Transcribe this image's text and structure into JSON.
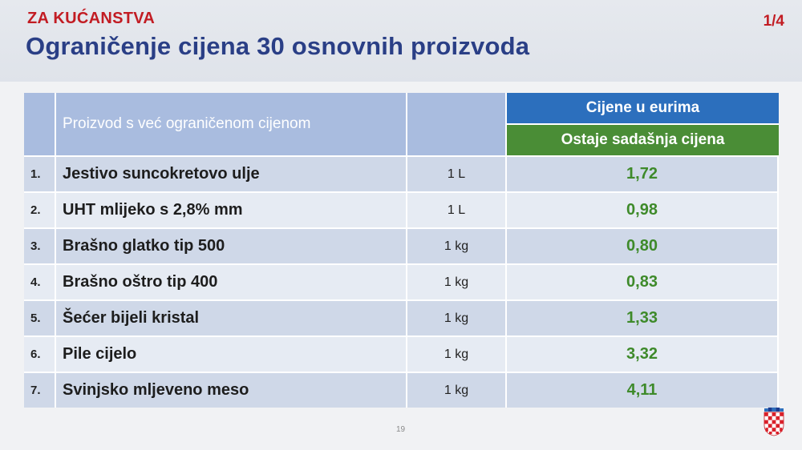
{
  "header": {
    "subtitle": "ZA KUĆANSTVA",
    "title": "Ograničenje cijena 30 osnovnih proizvoda",
    "page_counter": "1/4"
  },
  "table": {
    "product_header": "Proizvod s već ograničenom cijenom",
    "price_header": "Cijene u eurima",
    "price_subheader": "Ostaje sadašnja cijena",
    "rows": [
      {
        "num": "1.",
        "name": "Jestivo suncokretovo ulje",
        "unit": "1 L",
        "price": "1,72"
      },
      {
        "num": "2.",
        "name": "UHT mlijeko s 2,8% mm",
        "unit": "1 L",
        "price": "0,98"
      },
      {
        "num": "3.",
        "name": "Brašno glatko tip 500",
        "unit": "1 kg",
        "price": "0,80"
      },
      {
        "num": "4.",
        "name": "Brašno oštro tip 400",
        "unit": "1 kg",
        "price": "0,83"
      },
      {
        "num": "5.",
        "name": "Šećer bijeli kristal",
        "unit": "1 kg",
        "price": "1,33"
      },
      {
        "num": "6.",
        "name": "Pile cijelo",
        "unit": "1 kg",
        "price": "3,32"
      },
      {
        "num": "7.",
        "name": "Svinjsko mljeveno meso",
        "unit": "1 kg",
        "price": "4,11"
      }
    ]
  },
  "footer": {
    "slide_number": "19"
  },
  "colors": {
    "title": "#2a3f86",
    "subtitle": "#c21c23",
    "price_header_blue": "#2c6fbd",
    "price_header_green": "#4a8d36",
    "price_text": "#3e8a2a"
  },
  "icons": {
    "emblem": "croatian-coat-of-arms-icon"
  }
}
